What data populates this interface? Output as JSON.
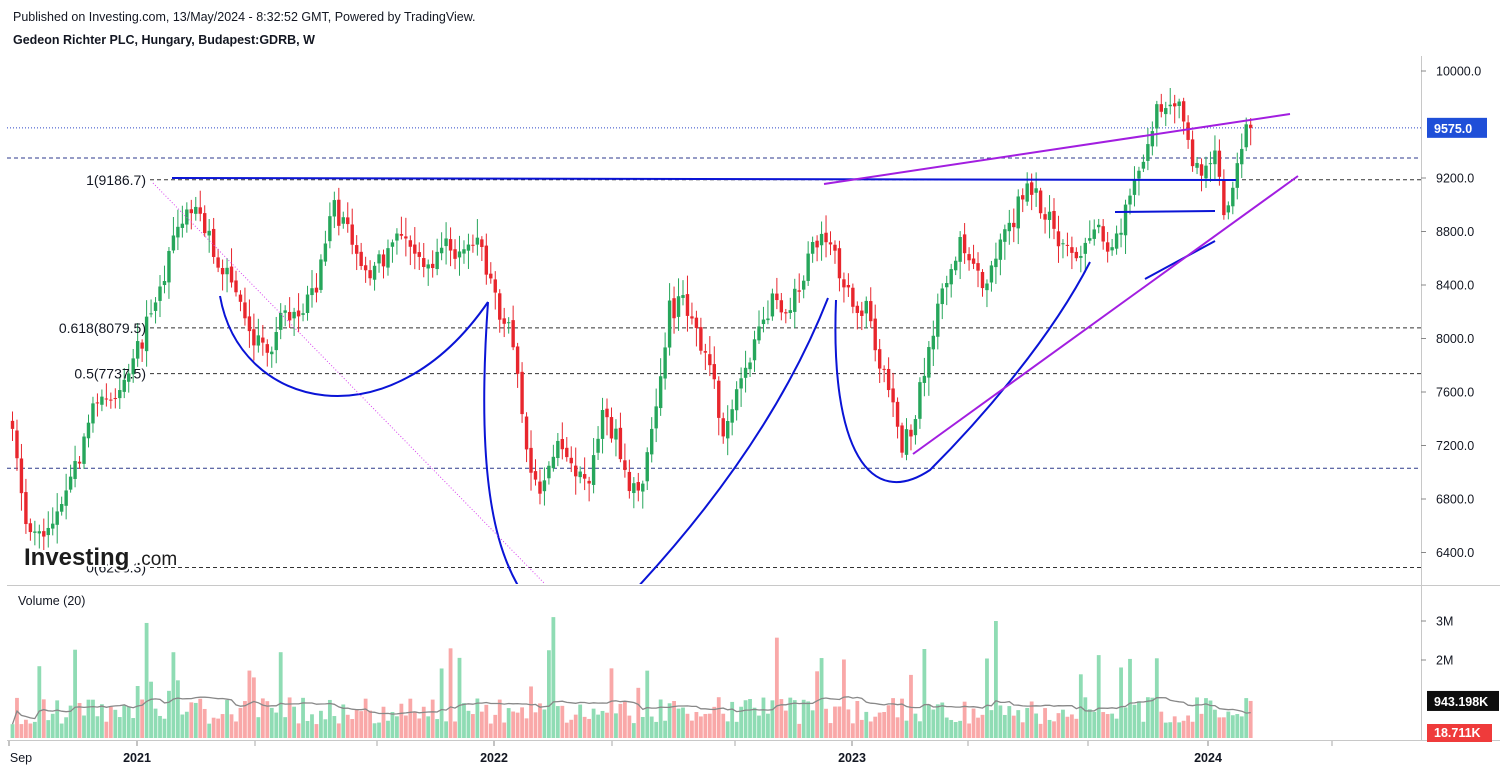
{
  "header": {
    "published": "Published on Investing.com, 13/May/2024 - 8:32:52 GMT, Powered by TradingView.",
    "instrument": "Gedeon Richter PLC, Hungary, Budapest:GDRB, W"
  },
  "logo": {
    "brand": "Investing",
    "suffix": ".com"
  },
  "volume_panel": {
    "title": "Volume (20)"
  },
  "colors": {
    "up": "#26a65b",
    "down": "#e8262d",
    "vol_up": "#8fdcb4",
    "vol_down": "#f9a8a8",
    "pattern": "#0a14d6",
    "trend": "#a21ee0",
    "price_line": "#2e47c7",
    "price_tag": "#1f4fd8",
    "vol_tag": "#0d0d0d",
    "vol_tag2": "#ef3b3b",
    "ma": "#888888"
  },
  "chart_data": {
    "type": "candlestick",
    "timeframe": "W",
    "price_ylim": [
      6300,
      10000
    ],
    "price_ticks": [
      "6400.0",
      "6800.0",
      "7200.0",
      "7600.0",
      "8000.0",
      "8400.0",
      "8800.0",
      "9200.0",
      "10000.0"
    ],
    "last_price": "9575.0",
    "x_ticks": [
      "Sep",
      "2021",
      "2022",
      "2023",
      "2024"
    ],
    "fib_levels": [
      {
        "label": "1(9186.7)",
        "value": 9186.7
      },
      {
        "label": "0.618(8079.5)",
        "value": 8079.5
      },
      {
        "label": "0.5(7737.5)",
        "value": 7737.5
      },
      {
        "label": "0(6288.3)",
        "value": 6288.3
      }
    ],
    "extra_levels": [
      9350,
      7030
    ],
    "volume_ticks": [
      "2M",
      "3M"
    ],
    "volume_last": "943.198K",
    "volume_ma_last": "18.711K",
    "anchors": [
      [
        0,
        7300
      ],
      [
        3,
        6600
      ],
      [
        8,
        6500
      ],
      [
        11,
        6700
      ],
      [
        14,
        7000
      ],
      [
        18,
        7500
      ],
      [
        24,
        7600
      ],
      [
        29,
        8000
      ],
      [
        34,
        8500
      ],
      [
        38,
        8900
      ],
      [
        42,
        8900
      ],
      [
        46,
        8600
      ],
      [
        50,
        8300
      ],
      [
        54,
        8000
      ],
      [
        57,
        7900
      ],
      [
        61,
        8200
      ],
      [
        64,
        8100
      ],
      [
        68,
        8400
      ],
      [
        72,
        9000
      ],
      [
        76,
        8700
      ],
      [
        80,
        8500
      ],
      [
        84,
        8600
      ],
      [
        88,
        8800
      ],
      [
        92,
        8500
      ],
      [
        96,
        8700
      ],
      [
        100,
        8600
      ],
      [
        104,
        8700
      ],
      [
        108,
        8300
      ],
      [
        112,
        8000
      ],
      [
        115,
        7100
      ],
      [
        118,
        6800
      ],
      [
        122,
        7200
      ],
      [
        126,
        7000
      ],
      [
        129,
        6900
      ],
      [
        132,
        7400
      ],
      [
        135,
        7300
      ],
      [
        138,
        6800
      ],
      [
        141,
        7000
      ],
      [
        144,
        7500
      ],
      [
        147,
        8200
      ],
      [
        150,
        8300
      ],
      [
        153,
        8000
      ],
      [
        156,
        7800
      ],
      [
        159,
        7300
      ],
      [
        162,
        7600
      ],
      [
        166,
        8000
      ],
      [
        170,
        8300
      ],
      [
        173,
        8200
      ],
      [
        176,
        8400
      ],
      [
        179,
        8700
      ],
      [
        182,
        8800
      ],
      [
        185,
        8500
      ],
      [
        188,
        8300
      ],
      [
        191,
        8200
      ],
      [
        194,
        7800
      ],
      [
        197,
        7500
      ],
      [
        199,
        7200
      ],
      [
        201,
        7300
      ],
      [
        203,
        7600
      ],
      [
        206,
        8100
      ],
      [
        209,
        8400
      ],
      [
        212,
        8700
      ],
      [
        215,
        8500
      ],
      [
        218,
        8400
      ],
      [
        221,
        8700
      ],
      [
        224,
        8900
      ],
      [
        227,
        9200
      ],
      [
        230,
        9000
      ],
      [
        233,
        8800
      ],
      [
        236,
        8700
      ],
      [
        239,
        8600
      ],
      [
        242,
        8900
      ],
      [
        245,
        8700
      ],
      [
        248,
        8800
      ],
      [
        250,
        9100
      ],
      [
        253,
        9400
      ],
      [
        256,
        9700
      ],
      [
        258,
        9800
      ],
      [
        261,
        9700
      ],
      [
        263,
        9400
      ],
      [
        266,
        9300
      ],
      [
        269,
        9400
      ],
      [
        271,
        8900
      ],
      [
        273,
        9200
      ],
      [
        275,
        9500
      ],
      [
        277,
        9620
      ]
    ]
  }
}
